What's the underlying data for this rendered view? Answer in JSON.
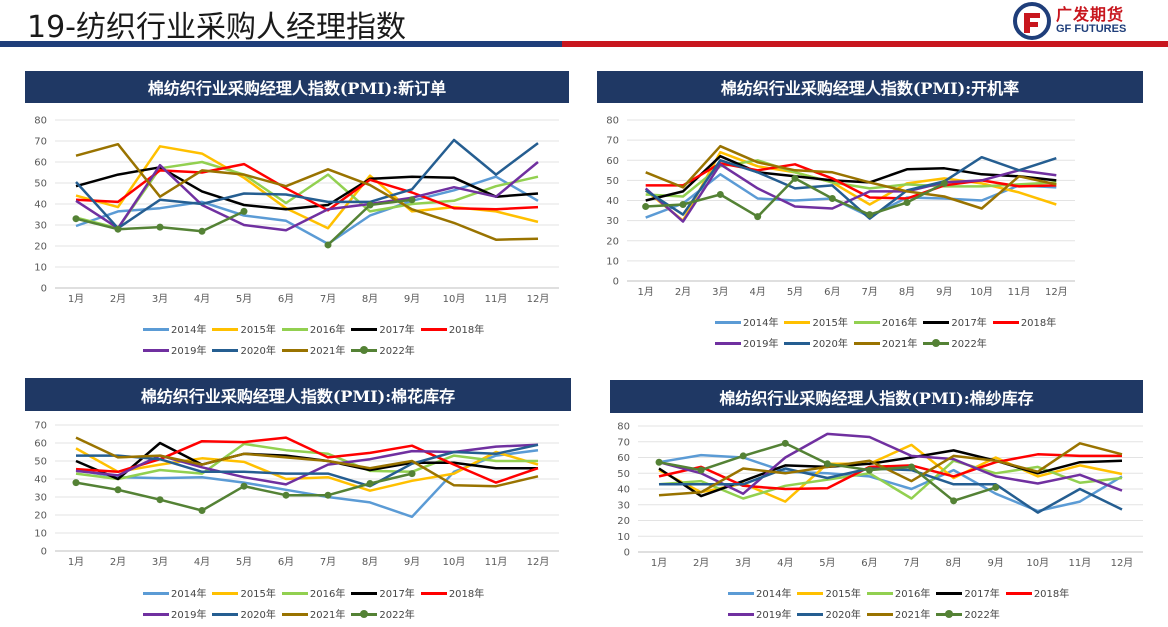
{
  "page": {
    "title": "19-纺织行业采购人经理指数"
  },
  "logo": {
    "brand_cn": "广发期货",
    "brand_en": "GF FUTURES"
  },
  "series_meta": [
    {
      "name": "2014年",
      "color": "#5b9bd5",
      "marker": false
    },
    {
      "name": "2015年",
      "color": "#ffc000",
      "marker": false
    },
    {
      "name": "2016年",
      "color": "#92d050",
      "marker": false
    },
    {
      "name": "2017年",
      "color": "#000000",
      "marker": false
    },
    {
      "name": "2018年",
      "color": "#ff0000",
      "marker": false
    },
    {
      "name": "2019年",
      "color": "#7030a0",
      "marker": false
    },
    {
      "name": "2020年",
      "color": "#255e91",
      "marker": false
    },
    {
      "name": "2021年",
      "color": "#997300",
      "marker": false
    },
    {
      "name": "2022年",
      "color": "#548235",
      "marker": true
    }
  ],
  "chart_data": [
    {
      "type": "line",
      "title": "棉纺织行业采购经理人指数(PMI):新订单",
      "categories": [
        "1月",
        "2月",
        "3月",
        "4月",
        "5月",
        "6月",
        "7月",
        "8月",
        "9月",
        "10月",
        "11月",
        "12月"
      ],
      "ylim": [
        0,
        80
      ],
      "yticks": [
        0,
        10,
        20,
        30,
        40,
        50,
        60,
        70,
        80
      ],
      "series": [
        {
          "name": "2014年",
          "values": [
            29.5,
            36.5,
            38,
            41,
            34.5,
            32,
            21,
            34.5,
            41.5,
            46.5,
            53,
            41.5
          ]
        },
        {
          "name": "2015年",
          "values": [
            44,
            38.5,
            67.5,
            64,
            52.5,
            38,
            28.5,
            53.5,
            36.5,
            38.5,
            36.5,
            31.5
          ]
        },
        {
          "name": "2016年",
          "values": [
            33.5,
            28.5,
            57,
            60,
            54,
            40.5,
            54,
            36.5,
            40,
            41.5,
            48.5,
            53
          ]
        },
        {
          "name": "2017年",
          "values": [
            48.5,
            54,
            57.5,
            46,
            39.5,
            37.5,
            39.5,
            52,
            53,
            52.5,
            43.5,
            45
          ]
        },
        {
          "name": "2018年",
          "values": [
            42,
            41,
            56,
            55,
            59,
            47.5,
            37,
            51.5,
            45.5,
            38,
            37.5,
            38.5
          ]
        },
        {
          "name": "2019年",
          "values": [
            41.5,
            28.5,
            58.5,
            39.5,
            30,
            27.5,
            37.5,
            40,
            43,
            48,
            43.5,
            60
          ]
        },
        {
          "name": "2020年",
          "values": [
            50.5,
            28.5,
            42,
            40,
            45,
            44.5,
            41,
            41,
            47,
            70.5,
            54,
            69
          ]
        },
        {
          "name": "2021年",
          "values": [
            63,
            68.5,
            43.5,
            56,
            54,
            48.5,
            56.5,
            49,
            37.5,
            31,
            23,
            23.5
          ]
        },
        {
          "name": "2022年",
          "values": [
            33,
            28,
            29,
            27,
            36.5,
            null,
            20.5,
            39.5,
            42,
            null,
            null,
            null
          ]
        }
      ]
    },
    {
      "type": "line",
      "title": "棉纺织行业采购经理人指数(PMI):开机率",
      "categories": [
        "1月",
        "2月",
        "3月",
        "4月",
        "5月",
        "6月",
        "7月",
        "8月",
        "9月",
        "10月",
        "11月",
        "12月"
      ],
      "ylim": [
        0,
        80
      ],
      "yticks": [
        0,
        10,
        20,
        30,
        40,
        50,
        60,
        70,
        80
      ],
      "series": [
        {
          "name": "2014年",
          "values": [
            31.5,
            38.5,
            53,
            41,
            40,
            41,
            32,
            41.5,
            41,
            40,
            47.5,
            46.5
          ]
        },
        {
          "name": "2015年",
          "values": [
            45,
            30,
            64,
            57,
            54,
            49,
            38,
            48.5,
            51,
            48.5,
            44,
            38
          ]
        },
        {
          "name": "2016年",
          "values": [
            43,
            42,
            57,
            60,
            54,
            49,
            46,
            48,
            47,
            47,
            48,
            49
          ]
        },
        {
          "name": "2017年",
          "values": [
            40,
            44.5,
            62,
            54,
            52,
            50,
            49,
            55.5,
            56,
            53,
            52,
            50
          ]
        },
        {
          "name": "2018年",
          "values": [
            47.5,
            47.5,
            58.5,
            55,
            58,
            51,
            41.5,
            41,
            47.5,
            50,
            47,
            47.5
          ]
        },
        {
          "name": "2019年",
          "values": [
            46,
            29.5,
            58,
            46,
            37,
            36,
            44.5,
            44.5,
            49,
            50,
            55,
            52.5
          ]
        },
        {
          "name": "2020年",
          "values": [
            45,
            33,
            60,
            54,
            46,
            47.5,
            31,
            45,
            49.5,
            61.5,
            55,
            61
          ]
        },
        {
          "name": "2021年",
          "values": [
            54,
            46.5,
            67,
            59,
            55,
            54,
            49,
            44.5,
            42,
            36,
            52,
            48
          ]
        },
        {
          "name": "2022年",
          "values": [
            37,
            38,
            43,
            32,
            51,
            41,
            33,
            39,
            48.5,
            null,
            null,
            null
          ]
        }
      ]
    },
    {
      "type": "line",
      "title": "棉纺织行业采购经理人指数(PMI):棉花库存",
      "categories": [
        "1月",
        "2月",
        "3月",
        "4月",
        "5月",
        "6月",
        "7月",
        "8月",
        "9月",
        "10月",
        "11月",
        "12月"
      ],
      "ylim": [
        0,
        70
      ],
      "yticks": [
        0,
        10,
        20,
        30,
        40,
        50,
        60,
        70
      ],
      "series": [
        {
          "name": "2014年",
          "values": [
            45,
            41,
            40.5,
            41,
            38,
            34,
            30,
            27,
            19,
            44,
            53,
            56
          ]
        },
        {
          "name": "2015年",
          "values": [
            57,
            44,
            48,
            51.5,
            49.5,
            40,
            41,
            33.5,
            39,
            43,
            55,
            48
          ]
        },
        {
          "name": "2016年",
          "values": [
            43,
            40,
            45,
            43,
            59.5,
            56,
            54,
            44.5,
            44,
            53,
            50,
            50
          ]
        },
        {
          "name": "2017年",
          "values": [
            50,
            40,
            60,
            48,
            54,
            53,
            50,
            45,
            49,
            49,
            46,
            46
          ]
        },
        {
          "name": "2018年",
          "values": [
            45.5,
            44,
            51,
            61,
            60.5,
            63,
            52,
            54.5,
            58.5,
            48,
            38,
            46
          ]
        },
        {
          "name": "2019年",
          "values": [
            44.5,
            42,
            53,
            46.5,
            41,
            37,
            48,
            51,
            55.5,
            55,
            58,
            59
          ]
        },
        {
          "name": "2020年",
          "values": [
            53,
            53,
            51,
            44,
            44,
            43,
            43,
            36,
            48.5,
            55,
            54,
            59
          ]
        },
        {
          "name": "2021年",
          "values": [
            63,
            52,
            53,
            48,
            54,
            52,
            50,
            46,
            50,
            36.5,
            36,
            41.5
          ]
        },
        {
          "name": "2022年",
          "values": [
            38,
            34,
            28.5,
            22.5,
            36,
            31,
            31,
            37.5,
            43,
            null,
            null,
            null
          ]
        }
      ]
    },
    {
      "type": "line",
      "title": "棉纺织行业采购经理人指数(PMI):棉纱库存",
      "categories": [
        "1月",
        "2月",
        "3月",
        "4月",
        "5月",
        "6月",
        "7月",
        "8月",
        "9月",
        "10月",
        "11月",
        "12月"
      ],
      "ylim": [
        0,
        80
      ],
      "yticks": [
        0,
        10,
        20,
        30,
        40,
        50,
        60,
        70,
        80
      ],
      "series": [
        {
          "name": "2014年",
          "values": [
            57,
            61.5,
            60,
            51,
            50,
            48,
            40,
            52,
            37,
            26,
            32,
            48
          ]
        },
        {
          "name": "2015年",
          "values": [
            52,
            38,
            43.5,
            32,
            56,
            56,
            68,
            47,
            60,
            48,
            55,
            49.5
          ]
        },
        {
          "name": "2016年",
          "values": [
            43,
            45,
            34,
            42,
            46,
            50,
            34,
            58,
            50,
            54,
            44,
            47
          ]
        },
        {
          "name": "2017年",
          "values": [
            53,
            35.5,
            45,
            55,
            54,
            56,
            60,
            64.5,
            58,
            50,
            57,
            58
          ]
        },
        {
          "name": "2018年",
          "values": [
            48,
            54,
            42,
            40,
            40.5,
            54,
            55,
            48,
            57,
            62,
            61,
            61
          ]
        },
        {
          "name": "2019年",
          "values": [
            57,
            50,
            37,
            60,
            75,
            73,
            61,
            59,
            48,
            43.5,
            49,
            39
          ]
        },
        {
          "name": "2020年",
          "values": [
            43,
            43,
            43,
            53,
            47,
            53,
            52,
            43,
            43,
            25,
            40,
            27
          ]
        },
        {
          "name": "2021年",
          "values": [
            36,
            38,
            53,
            50,
            54,
            58,
            45,
            61,
            58,
            51,
            69,
            62
          ]
        },
        {
          "name": "2022年",
          "values": [
            57,
            52,
            61,
            69,
            56,
            52,
            54,
            32.5,
            41,
            null,
            null,
            null
          ]
        }
      ]
    }
  ]
}
